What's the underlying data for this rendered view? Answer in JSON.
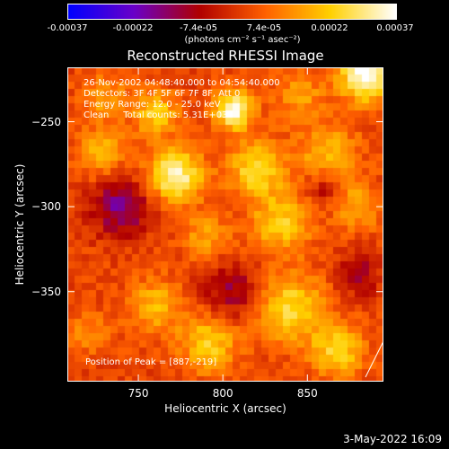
{
  "colorbar": {
    "ticks": [
      "-0.00037",
      "-0.00022",
      "-7.4e-05",
      "7.4e-05",
      "0.00022",
      "0.00037"
    ],
    "unit": "(photons cm⁻² s⁻¹ asec⁻²)",
    "colormap": [
      "#0000ff",
      "#6a00c8",
      "#b00000",
      "#ff6000",
      "#ffd000",
      "#ffffff"
    ]
  },
  "chart_data": {
    "type": "heatmap",
    "title": "Reconstructed RHESSI Image",
    "xlabel": "Heliocentric X (arcsec)",
    "ylabel": "Heliocentric Y (arcsec)",
    "xlim": [
      708,
      895
    ],
    "ylim": [
      -403,
      -218
    ],
    "xticks": [
      750,
      800,
      850
    ],
    "yticks": [
      -250,
      -300,
      -350
    ],
    "value_range": [
      -0.00037,
      0.00037
    ],
    "peak": [
      887,
      -219
    ],
    "annotations": [
      "26-Nov-2002 04:48:40.000 to 04:54:40.000",
      "Detectors: 3F 4F 5F 6F 7F 8F, Att 0",
      "Energy Range: 12.0 - 25.0 keV",
      "Clean     Total counts: 5.31E+03"
    ],
    "peak_label": "Position of Peak = [887,-219]",
    "sources": [
      {
        "x": 885,
        "y": -222,
        "w": 11,
        "amp": 1.0
      },
      {
        "x": 806,
        "y": -243,
        "w": 8,
        "amp": 0.9
      },
      {
        "x": 772,
        "y": -282,
        "w": 11,
        "amp": 0.85
      },
      {
        "x": 760,
        "y": -245,
        "w": 9,
        "amp": 0.55
      },
      {
        "x": 728,
        "y": -268,
        "w": 10,
        "amp": 0.45
      },
      {
        "x": 820,
        "y": -278,
        "w": 12,
        "amp": 0.6
      },
      {
        "x": 835,
        "y": -310,
        "w": 12,
        "amp": 0.55
      },
      {
        "x": 790,
        "y": -318,
        "w": 10,
        "amp": 0.35
      },
      {
        "x": 862,
        "y": -268,
        "w": 12,
        "amp": 0.45
      },
      {
        "x": 880,
        "y": -300,
        "w": 10,
        "amp": 0.4
      },
      {
        "x": 760,
        "y": -358,
        "w": 11,
        "amp": 0.45
      },
      {
        "x": 792,
        "y": -380,
        "w": 12,
        "amp": 0.55
      },
      {
        "x": 840,
        "y": -360,
        "w": 14,
        "amp": 0.6
      },
      {
        "x": 868,
        "y": -385,
        "w": 11,
        "amp": 0.55
      },
      {
        "x": 720,
        "y": -375,
        "w": 9,
        "amp": 0.25
      },
      {
        "x": 730,
        "y": -235,
        "w": 9,
        "amp": 0.35
      },
      {
        "x": 845,
        "y": -235,
        "w": 10,
        "amp": 0.35
      },
      {
        "x": 740,
        "y": -300,
        "w": 12,
        "amp": -0.55
      },
      {
        "x": 805,
        "y": -350,
        "w": 12,
        "amp": -0.4
      },
      {
        "x": 880,
        "y": -340,
        "w": 9,
        "amp": -0.35
      },
      {
        "x": 860,
        "y": -290,
        "w": 7,
        "amp": -0.3
      }
    ]
  },
  "datestamp": "3-May-2022 16:09"
}
